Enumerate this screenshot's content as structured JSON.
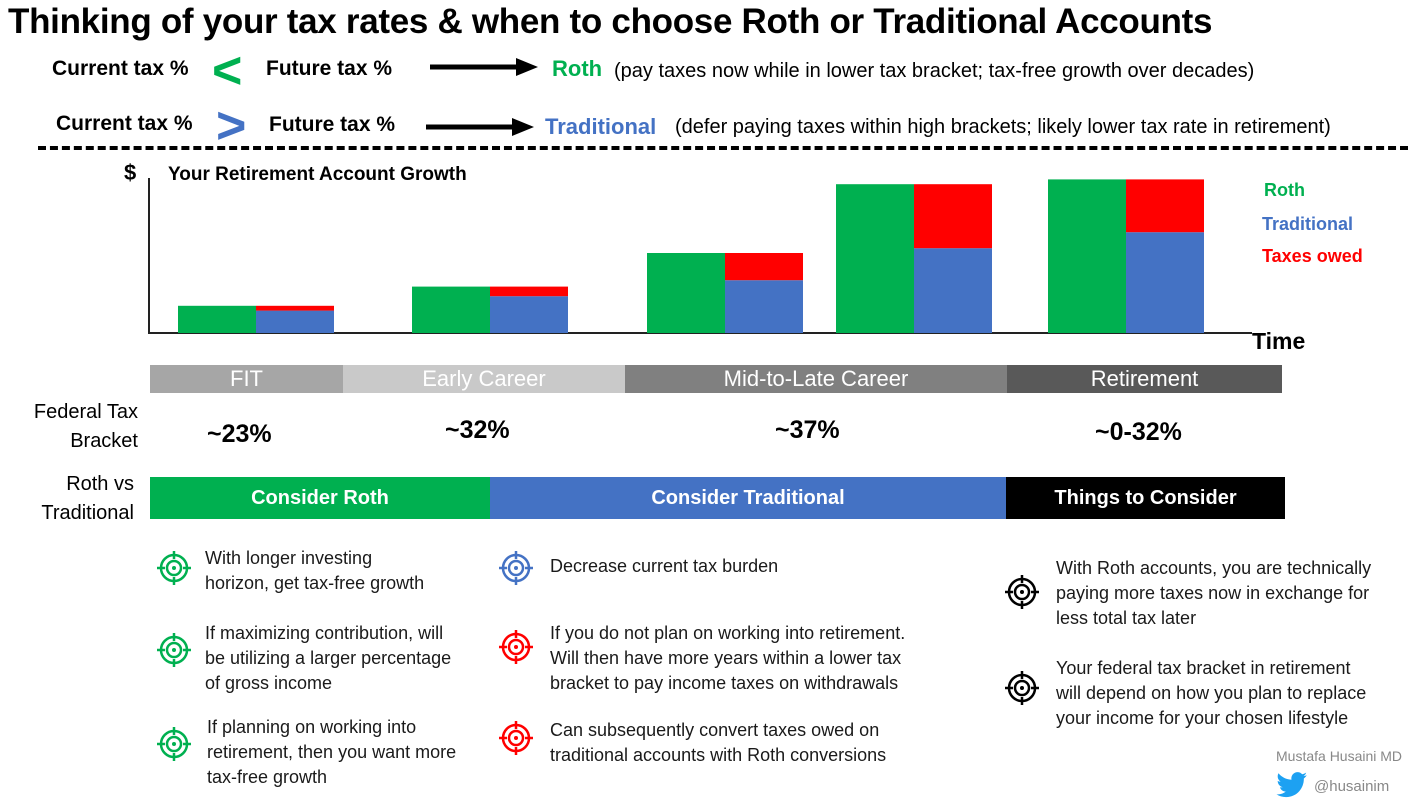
{
  "title": "Thinking of your tax rates & when to choose Roth or Traditional Accounts",
  "rules": [
    {
      "left": "Current tax %",
      "symbol": "<",
      "right": "Future tax %",
      "account": "Roth",
      "description": "(pay taxes now while in lower tax bracket; tax-free growth over decades)"
    },
    {
      "left": "Current tax %",
      "symbol": ">",
      "right": "Future tax %",
      "account": "Traditional",
      "description": "(defer paying taxes within high brackets; likely lower tax rate in retirement)"
    }
  ],
  "colors": {
    "roth": "#00b050",
    "traditional": "#4472c4",
    "taxes": "#ff0000",
    "black": "#000000"
  },
  "chart_data": {
    "type": "bar",
    "title": "Your Retirement Account Growth",
    "ylabel": "$",
    "xlabel": "Time",
    "ylim": [
      0,
      100
    ],
    "legend": [
      "Roth",
      "Traditional",
      "Taxes owed"
    ],
    "legend_position": "right",
    "groups": [
      {
        "roth": 17,
        "traditional": 14,
        "taxes": 3
      },
      {
        "roth": 29,
        "traditional": 23,
        "taxes": 6
      },
      {
        "roth": 50,
        "traditional": 33,
        "taxes": 17
      },
      {
        "roth": 93,
        "traditional": 53,
        "taxes": 40
      },
      {
        "roth": 96,
        "traditional": 63,
        "taxes": 33
      }
    ]
  },
  "phases": [
    "FIT",
    "Early Career",
    "Mid-to-Late Career",
    "Retirement"
  ],
  "labels": {
    "bracket": "Federal Tax\nBracket",
    "rothvs": "Roth vs\nTraditional"
  },
  "brackets": [
    "~23%",
    "~32%",
    "~37%",
    "~0-32%"
  ],
  "recommendations": [
    "Consider Roth",
    "Consider Traditional",
    "Things to Consider"
  ],
  "tips": {
    "roth": [
      "With longer investing\nhorizon, get tax-free growth",
      "If maximizing contribution, will\nbe utilizing a larger percentage\nof gross income",
      "If planning on working into\nretirement, then you want more\ntax-free growth"
    ],
    "traditional": [
      "Decrease current tax burden",
      "If you do not plan on working into retirement.\nWill then have more years within a lower tax\nbracket to pay income taxes on withdrawals",
      "Can subsequently convert taxes owed on\ntraditional accounts with Roth conversions"
    ],
    "consider": [
      "With Roth accounts, you are technically\npaying more taxes now in exchange for\nless total tax later",
      "Your federal tax bracket in retirement\nwill depend on how you plan to replace\nyour income for your chosen lifestyle"
    ]
  },
  "credit": {
    "author": "Mustafa Husaini MD",
    "handle": "@husainim",
    "icon": "twitter-bird-icon"
  }
}
